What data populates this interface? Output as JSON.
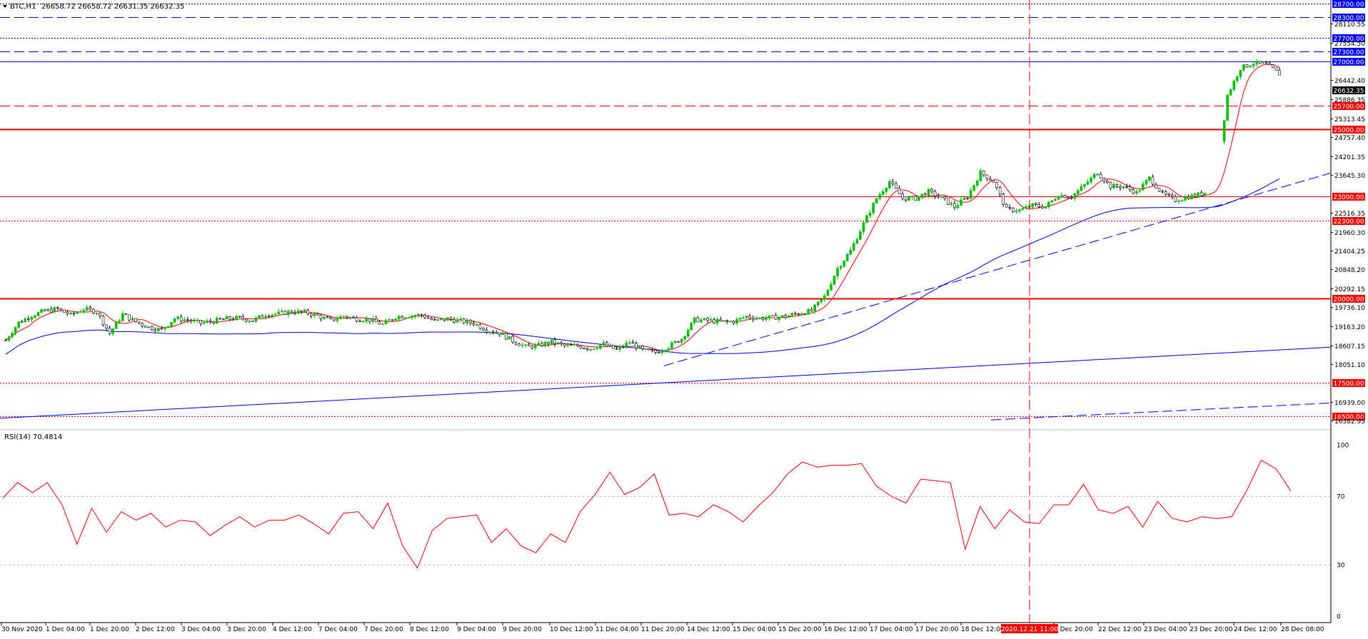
{
  "header": {
    "symbol_label": "BTC,H1",
    "ohlc": "26658.72 26658.72 26631.35 26632.35",
    "current_price": "26632.35"
  },
  "colors": {
    "background": "#ffffff",
    "bull_candle": "#00c000",
    "bear_candle": "#000000",
    "red": "#ff0000",
    "blue": "#0000ff",
    "grid": "#c0c0c0",
    "axis_text": "#000000"
  },
  "price_axis": {
    "ylim": [
      16150,
      28750
    ],
    "tick_labels": [
      "28110.55",
      "27554.50",
      "26442.40",
      "25886.35",
      "25313.45",
      "24757.40",
      "24201.35",
      "23645.30",
      "22516.35",
      "21960.30",
      "21404.25",
      "20848.20",
      "20292.15",
      "19736.10",
      "19163.20",
      "18607.15",
      "18051.10",
      "16939.00",
      "16382.95"
    ],
    "tick_values": [
      28110.55,
      27554.5,
      26442.4,
      25886.35,
      25313.45,
      24757.4,
      24201.35,
      23645.3,
      22516.35,
      21960.3,
      21404.25,
      20848.2,
      20292.15,
      19736.1,
      19163.2,
      18607.15,
      18051.1,
      16939.0,
      16382.95
    ]
  },
  "time_axis": {
    "labels": [
      "30 Nov 2020",
      "1 Dec 04:00",
      "1 Dec 20:00",
      "2 Dec 12:00",
      "3 Dec 04:00",
      "3 Dec 20:00",
      "4 Dec 12:00",
      "7 Dec 04:00",
      "7 Dec 20:00",
      "8 Dec 12:00",
      "9 Dec 04:00",
      "9 Dec 20:00",
      "10 Dec 12:00",
      "11 Dec 04:00",
      "11 Dec 20:00",
      "14 Dec 12:00",
      "15 Dec 04:00",
      "15 Dec 20:00",
      "16 Dec 12:00",
      "17 Dec 04:00",
      "17 Dec 20:00",
      "18 Dec 12:00",
      "1 Dec 20:00",
      "22 Dec 12:00",
      "23 Dec 04:00",
      "23 Dec 20:00",
      "24 Dec 12:00",
      "28 Dec 08:00"
    ],
    "crosshair_label": "2020.12.21 11:00"
  },
  "levels": [
    {
      "label": "28700.00",
      "value": 28700,
      "color": "#0000ff",
      "style": "dotted",
      "width": 1
    },
    {
      "label": "28300.00",
      "value": 28300,
      "color": "#0000ff",
      "style": "dashed",
      "width": 1
    },
    {
      "label": "27700.00",
      "value": 27700,
      "color": "#0000ff",
      "style": "dotted",
      "width": 1
    },
    {
      "label": "27300.00",
      "value": 27300,
      "color": "#0000ff",
      "style": "dashed",
      "width": 1
    },
    {
      "label": "27000.00",
      "value": 27000,
      "color": "#0000ff",
      "style": "solid",
      "width": 1
    },
    {
      "label": "25700.00",
      "value": 25700,
      "color": "#ff0000",
      "style": "dashed",
      "width": 1
    },
    {
      "label": "25000.00",
      "value": 25000,
      "color": "#ff0000",
      "style": "solid",
      "width": 2
    },
    {
      "label": "23000.00",
      "value": 23000,
      "color": "#ff0000",
      "style": "solid",
      "width": 1
    },
    {
      "label": "22300.00",
      "value": 22300,
      "color": "#ff0000",
      "style": "dotted",
      "width": 1
    },
    {
      "label": "20000.00",
      "value": 20000,
      "color": "#ff0000",
      "style": "solid",
      "width": 2
    },
    {
      "label": "17500.00",
      "value": 17500,
      "color": "#ff0000",
      "style": "dotted",
      "width": 1
    },
    {
      "label": "16500.00",
      "value": 16500,
      "color": "#ff0000",
      "style": "dotted",
      "width": 1
    }
  ],
  "rsi": {
    "label": "RSI(14) 70.4814",
    "ylim": [
      0,
      100
    ],
    "tick_labels": [
      "100",
      "70",
      "30",
      "0"
    ],
    "tick_values": [
      100,
      70,
      30,
      0
    ],
    "overbought": 70,
    "oversold": 30
  },
  "chart_data": {
    "type": "candlestick",
    "title": "BTC,H1",
    "period": "H1",
    "ylim": [
      16150,
      28750
    ],
    "close_series": [
      18760,
      19280,
      19490,
      19620,
      19680,
      19500,
      19680,
      19600,
      18960,
      19520,
      19300,
      19140,
      19060,
      19400,
      19350,
      19260,
      19320,
      19390,
      19410,
      19340,
      19520,
      19540,
      19600,
      19580,
      19480,
      19340,
      19470,
      19390,
      19360,
      19220,
      19450,
      19480,
      19500,
      19320,
      19390,
      19320,
      19260,
      19060,
      18970,
      18740,
      18560,
      18600,
      18710,
      18590,
      18590,
      18510,
      18640,
      18470,
      18700,
      18460,
      18400,
      18570,
      18800,
      19360,
      19340,
      19300,
      19310,
      19460,
      19400,
      19430,
      19460,
      19560,
      19620,
      20050,
      20880,
      21400,
      22200,
      22950,
      23450,
      22950,
      22950,
      23150,
      22950,
      22700,
      23000,
      23710,
      23450,
      22620,
      22600,
      22740,
      22700,
      23050,
      23000,
      23340,
      23720,
      23300,
      23300,
      23120,
      23550,
      23080,
      22900,
      23000,
      23080,
      23270,
      26000,
      26800,
      26950,
      26900,
      26632
    ],
    "rsi_values": [
      72,
      79,
      71,
      75,
      67,
      42,
      61,
      52,
      62,
      55,
      57,
      54,
      56,
      53,
      50,
      54,
      57,
      49,
      58,
      56,
      57,
      57,
      49,
      59,
      58,
      53,
      66,
      39,
      31,
      51,
      56,
      55,
      61,
      43,
      49,
      44,
      38,
      47,
      40,
      63,
      71,
      82,
      74,
      76,
      82,
      56,
      62,
      58,
      63,
      64,
      56,
      63,
      69,
      85,
      90,
      85,
      91,
      89,
      88,
      73,
      72,
      66,
      78,
      82,
      79,
      38,
      61,
      53,
      62,
      53,
      57,
      66,
      64,
      74,
      64,
      60,
      62,
      55,
      68,
      56,
      52,
      60,
      57,
      56,
      76,
      92,
      85,
      70
    ],
    "moving_averages": [
      {
        "name": "fast",
        "color": "#ff0000"
      },
      {
        "name": "medium",
        "color": "#0000ff"
      },
      {
        "name": "slow",
        "color": "#0000ff"
      }
    ],
    "trendlines": [
      {
        "color": "#0000ff",
        "style": "dashed",
        "from": [
          "11 Dec 20:00",
          18000
        ],
        "to": [
          "28 Dec 08:00",
          23700
        ]
      },
      {
        "color": "#0000ff",
        "style": "dashed",
        "from": [
          "2020.12.21 11:00",
          16400
        ],
        "to": [
          "28 Dec 08:00",
          16900
        ]
      }
    ],
    "vertical_marker": {
      "label": "2020.12.21 11:00",
      "color": "#ff0000",
      "style": "dashed"
    }
  }
}
